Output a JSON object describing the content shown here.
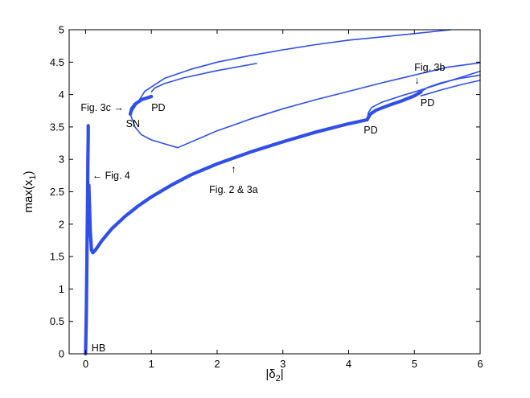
{
  "chart_data": {
    "type": "line",
    "xlabel": "|δ2|",
    "ylabel": "max(x1)",
    "xlim": [
      -0.25,
      6
    ],
    "ylim": [
      0,
      5
    ],
    "xticks": [
      "0",
      "1",
      "2",
      "3",
      "4",
      "5",
      "6"
    ],
    "yticks": [
      "0",
      "0.5",
      "1",
      "1.5",
      "2",
      "2.5",
      "3",
      "3.5",
      "4",
      "4.5",
      "5"
    ],
    "grid": false,
    "color": "#2f4fe6",
    "series": [
      {
        "style": "thick",
        "points": [
          [
            0.0,
            0.0
          ],
          [
            0.01,
            0.6
          ],
          [
            0.02,
            1.5
          ],
          [
            0.03,
            2.4
          ],
          [
            0.035,
            3.0
          ],
          [
            0.04,
            3.35
          ],
          [
            0.04,
            3.52
          ]
        ]
      },
      {
        "style": "thick",
        "points": [
          [
            0.05,
            2.6
          ],
          [
            0.07,
            1.9
          ],
          [
            0.09,
            1.6
          ],
          [
            0.11,
            1.56
          ],
          [
            0.15,
            1.6
          ],
          [
            0.25,
            1.75
          ],
          [
            0.4,
            1.93
          ],
          [
            0.6,
            2.12
          ],
          [
            0.8,
            2.28
          ],
          [
            1.0,
            2.42
          ],
          [
            1.3,
            2.6
          ],
          [
            1.6,
            2.76
          ],
          [
            2.0,
            2.93
          ],
          [
            2.5,
            3.11
          ],
          [
            3.0,
            3.27
          ],
          [
            3.5,
            3.42
          ],
          [
            4.0,
            3.55
          ],
          [
            4.28,
            3.61
          ]
        ]
      },
      {
        "style": "thick",
        "points": [
          [
            4.28,
            3.61
          ],
          [
            4.33,
            3.7
          ],
          [
            4.42,
            3.76
          ],
          [
            4.6,
            3.83
          ],
          [
            4.8,
            3.9
          ],
          [
            5.0,
            3.98
          ],
          [
            5.1,
            4.04
          ]
        ]
      },
      {
        "style": "thick",
        "points": [
          [
            0.68,
            3.7
          ],
          [
            0.7,
            3.78
          ],
          [
            0.75,
            3.85
          ],
          [
            0.85,
            3.92
          ],
          [
            1.0,
            3.97
          ]
        ]
      },
      {
        "style": "thin",
        "points": [
          [
            1.0,
            4.04
          ],
          [
            1.05,
            4.1
          ],
          [
            1.2,
            4.17
          ],
          [
            1.5,
            4.26
          ],
          [
            2.0,
            4.37
          ],
          [
            2.6,
            4.48
          ]
        ]
      },
      {
        "style": "thin",
        "points": [
          [
            0.68,
            3.7
          ],
          [
            0.9,
            4.05
          ],
          [
            1.2,
            4.25
          ],
          [
            1.6,
            4.39
          ],
          [
            2.0,
            4.5
          ],
          [
            2.5,
            4.6
          ],
          [
            3.0,
            4.69
          ],
          [
            3.5,
            4.77
          ],
          [
            4.0,
            4.84
          ],
          [
            4.5,
            4.89
          ],
          [
            5.0,
            4.94
          ],
          [
            5.55,
            5.0
          ]
        ]
      },
      {
        "style": "thin",
        "points": [
          [
            0.68,
            3.7
          ],
          [
            0.75,
            3.5
          ],
          [
            0.85,
            3.38
          ],
          [
            1.0,
            3.3
          ],
          [
            1.2,
            3.24
          ],
          [
            1.4,
            3.18
          ],
          [
            2.0,
            3.44
          ],
          [
            2.5,
            3.62
          ],
          [
            3.0,
            3.78
          ],
          [
            3.5,
            3.92
          ],
          [
            4.0,
            4.05
          ],
          [
            4.5,
            4.18
          ],
          [
            5.0,
            4.3
          ],
          [
            5.5,
            4.42
          ],
          [
            6.0,
            4.49
          ]
        ]
      },
      {
        "style": "thin",
        "points": [
          [
            4.28,
            3.61
          ],
          [
            4.3,
            3.72
          ],
          [
            4.35,
            3.8
          ],
          [
            4.5,
            3.88
          ],
          [
            4.8,
            3.98
          ],
          [
            5.0,
            4.04
          ],
          [
            5.5,
            4.2
          ],
          [
            6.0,
            4.36
          ]
        ]
      },
      {
        "style": "thin",
        "points": [
          [
            5.1,
            4.04
          ],
          [
            5.2,
            4.11
          ],
          [
            5.4,
            4.18
          ],
          [
            5.7,
            4.25
          ],
          [
            6.0,
            4.3
          ]
        ]
      },
      {
        "style": "thin",
        "points": [
          [
            5.1,
            3.98
          ],
          [
            5.4,
            4.07
          ],
          [
            5.7,
            4.15
          ],
          [
            6.0,
            4.22
          ]
        ]
      }
    ],
    "annotations": [
      {
        "text": "Fig. 3c →",
        "x": 0.58,
        "y": 3.75,
        "anchor": "end"
      },
      {
        "text": "SN",
        "x": 0.72,
        "y": 3.5,
        "anchor": "middle"
      },
      {
        "text": "PD",
        "x": 1.0,
        "y": 3.75,
        "anchor": "start"
      },
      {
        "text": "PD",
        "x": 4.23,
        "y": 3.4,
        "anchor": "start"
      },
      {
        "text": "Fig. 3b",
        "x": 5.0,
        "y": 4.37,
        "anchor": "start"
      },
      {
        "text": "↓",
        "x": 5.04,
        "y": 4.17,
        "anchor": "middle"
      },
      {
        "text": "PD",
        "x": 5.2,
        "y": 3.82,
        "anchor": "middle"
      },
      {
        "text": "← Fig. 4",
        "x": 0.1,
        "y": 2.7,
        "anchor": "start"
      },
      {
        "text": "↑",
        "x": 2.25,
        "y": 2.8,
        "anchor": "middle"
      },
      {
        "text": "Fig. 2 & 3a",
        "x": 2.25,
        "y": 2.48,
        "anchor": "middle"
      },
      {
        "text": "HB",
        "x": 0.09,
        "y": 0.04,
        "anchor": "start"
      }
    ]
  }
}
